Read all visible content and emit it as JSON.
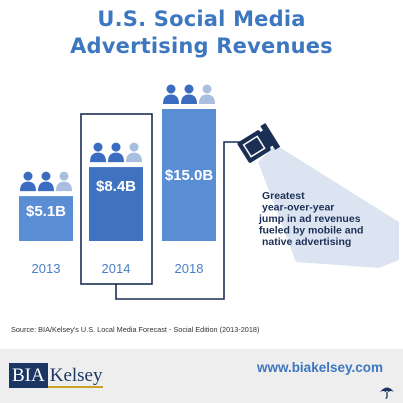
{
  "title_line1": "U.S. Social Media",
  "title_line2": "Advertising Revenues",
  "chart_data": {
    "type": "bar",
    "categories": [
      "2013",
      "2014",
      "2018"
    ],
    "values": [
      5.1,
      8.4,
      15.0
    ],
    "value_labels": [
      "$5.1B",
      "$8.4B",
      "$15.0B"
    ],
    "highlighted_category": "2014",
    "annotation": "Greatest year-over-year jump in ad revenues fueled by mobile and native advertising"
  },
  "colors": {
    "bar": "#5a8ed4",
    "bar_highlight": "#3f73c2",
    "title": "#3d77c0",
    "people_dark": "#3a6dc0",
    "people_light": "#a9bfdf",
    "spotlight": "#dce4f2"
  },
  "source": "Source: BIA/Kelsey's U.S. Local Media Forecast - Social Edition (2013-2018)",
  "footer": {
    "logo_left": "BIA",
    "logo_right": "Kelsey",
    "url": "www.biakelsey.com"
  }
}
